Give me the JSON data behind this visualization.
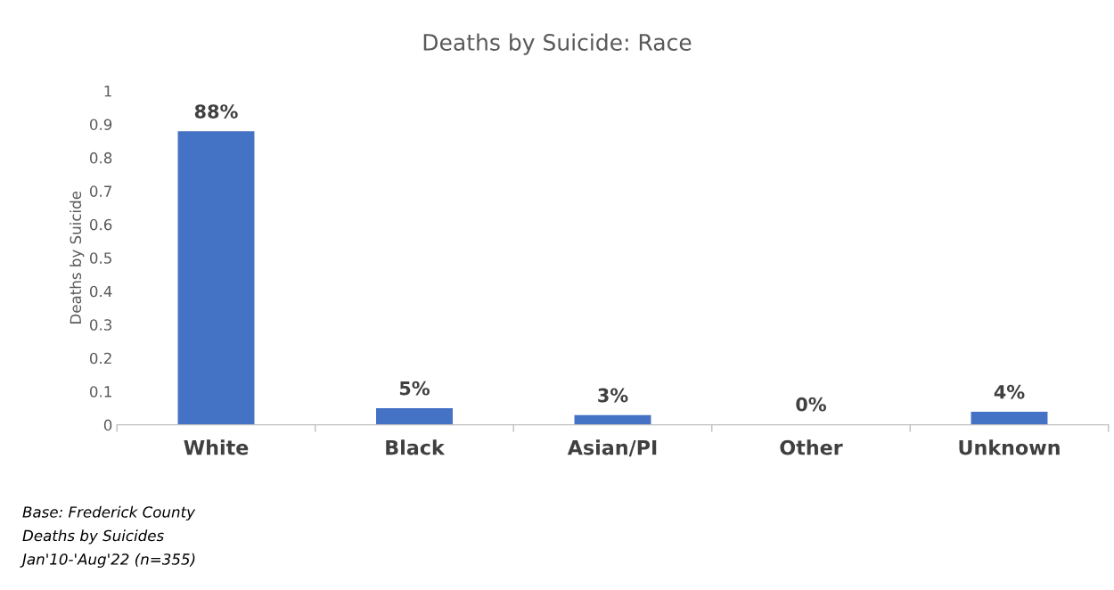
{
  "chart_data": {
    "type": "bar",
    "title": "Deaths by Suicide: Race",
    "ylabel": "Deaths by Suicide",
    "categories": [
      "White",
      "Black",
      "Asian/PI",
      "Other",
      "Unknown"
    ],
    "values": [
      0.877,
      0.048,
      0.027,
      0,
      0.037
    ],
    "value_labels": [
      "88%",
      "5%",
      "3%",
      "0%",
      "4%"
    ],
    "color": "#4472c4",
    "ylim": [
      0,
      1
    ],
    "yticks": [
      0,
      0.1,
      0.2,
      0.3,
      0.4,
      0.5,
      0.6,
      0.7,
      0.8,
      0.9,
      1
    ],
    "grid": false,
    "legend": false,
    "annotations": [
      "Base: Frederick County",
      "Deaths by Suicides",
      "Jan'10-'Aug'22 (n=355)"
    ]
  }
}
